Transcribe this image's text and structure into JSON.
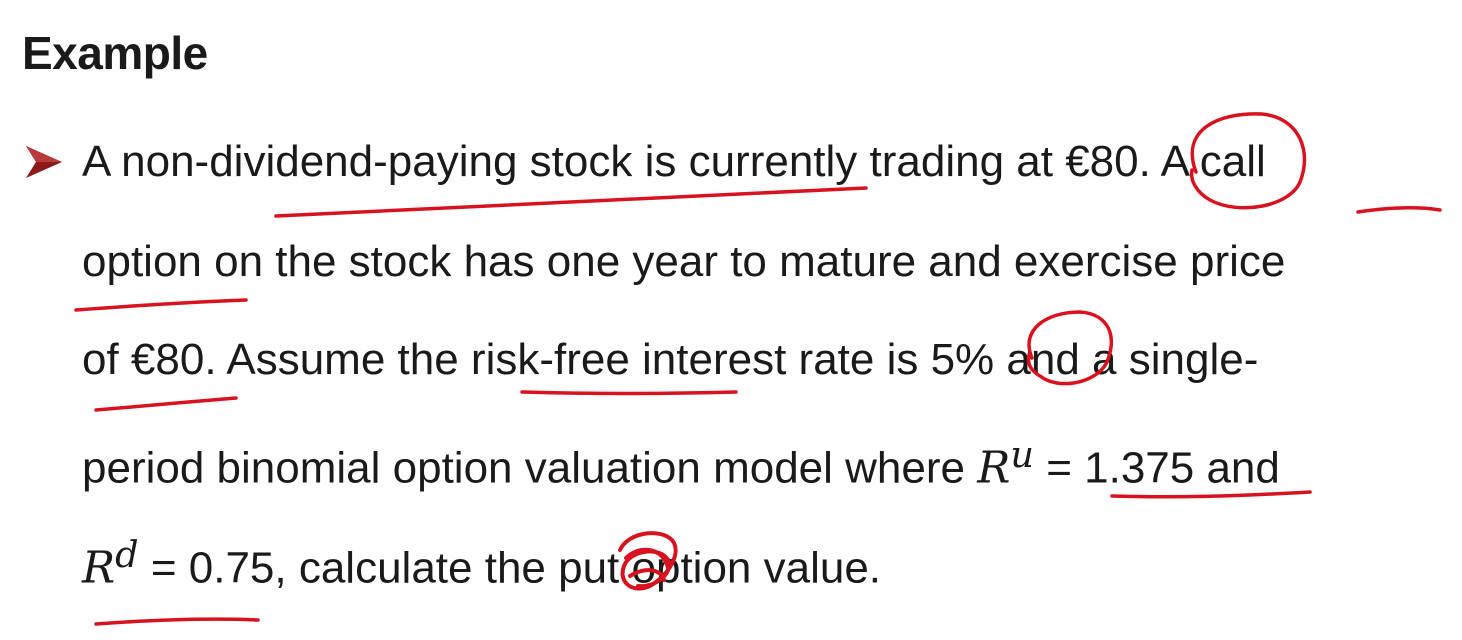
{
  "slide": {
    "title": "Example",
    "lines": [
      "A non-dividend-paying stock is currently trading at €80. A call",
      "option on the stock has one year to mature and exercise price",
      "of €80. Assume the risk-free interest rate is 5% and a single-",
      "period binomial option valuation model where",
      ", calculate the put option value."
    ],
    "formulas": {
      "ru_symbol": "R",
      "ru_sup": "u",
      "ru_rest": " = 1.375 and",
      "rd_symbol": "R",
      "rd_sup": "d",
      "rd_rest": " = 0.75"
    }
  },
  "colors": {
    "text": "#1a1a1a",
    "bullet": "#8b1a1a",
    "annotation_ink": "#d8131f"
  }
}
